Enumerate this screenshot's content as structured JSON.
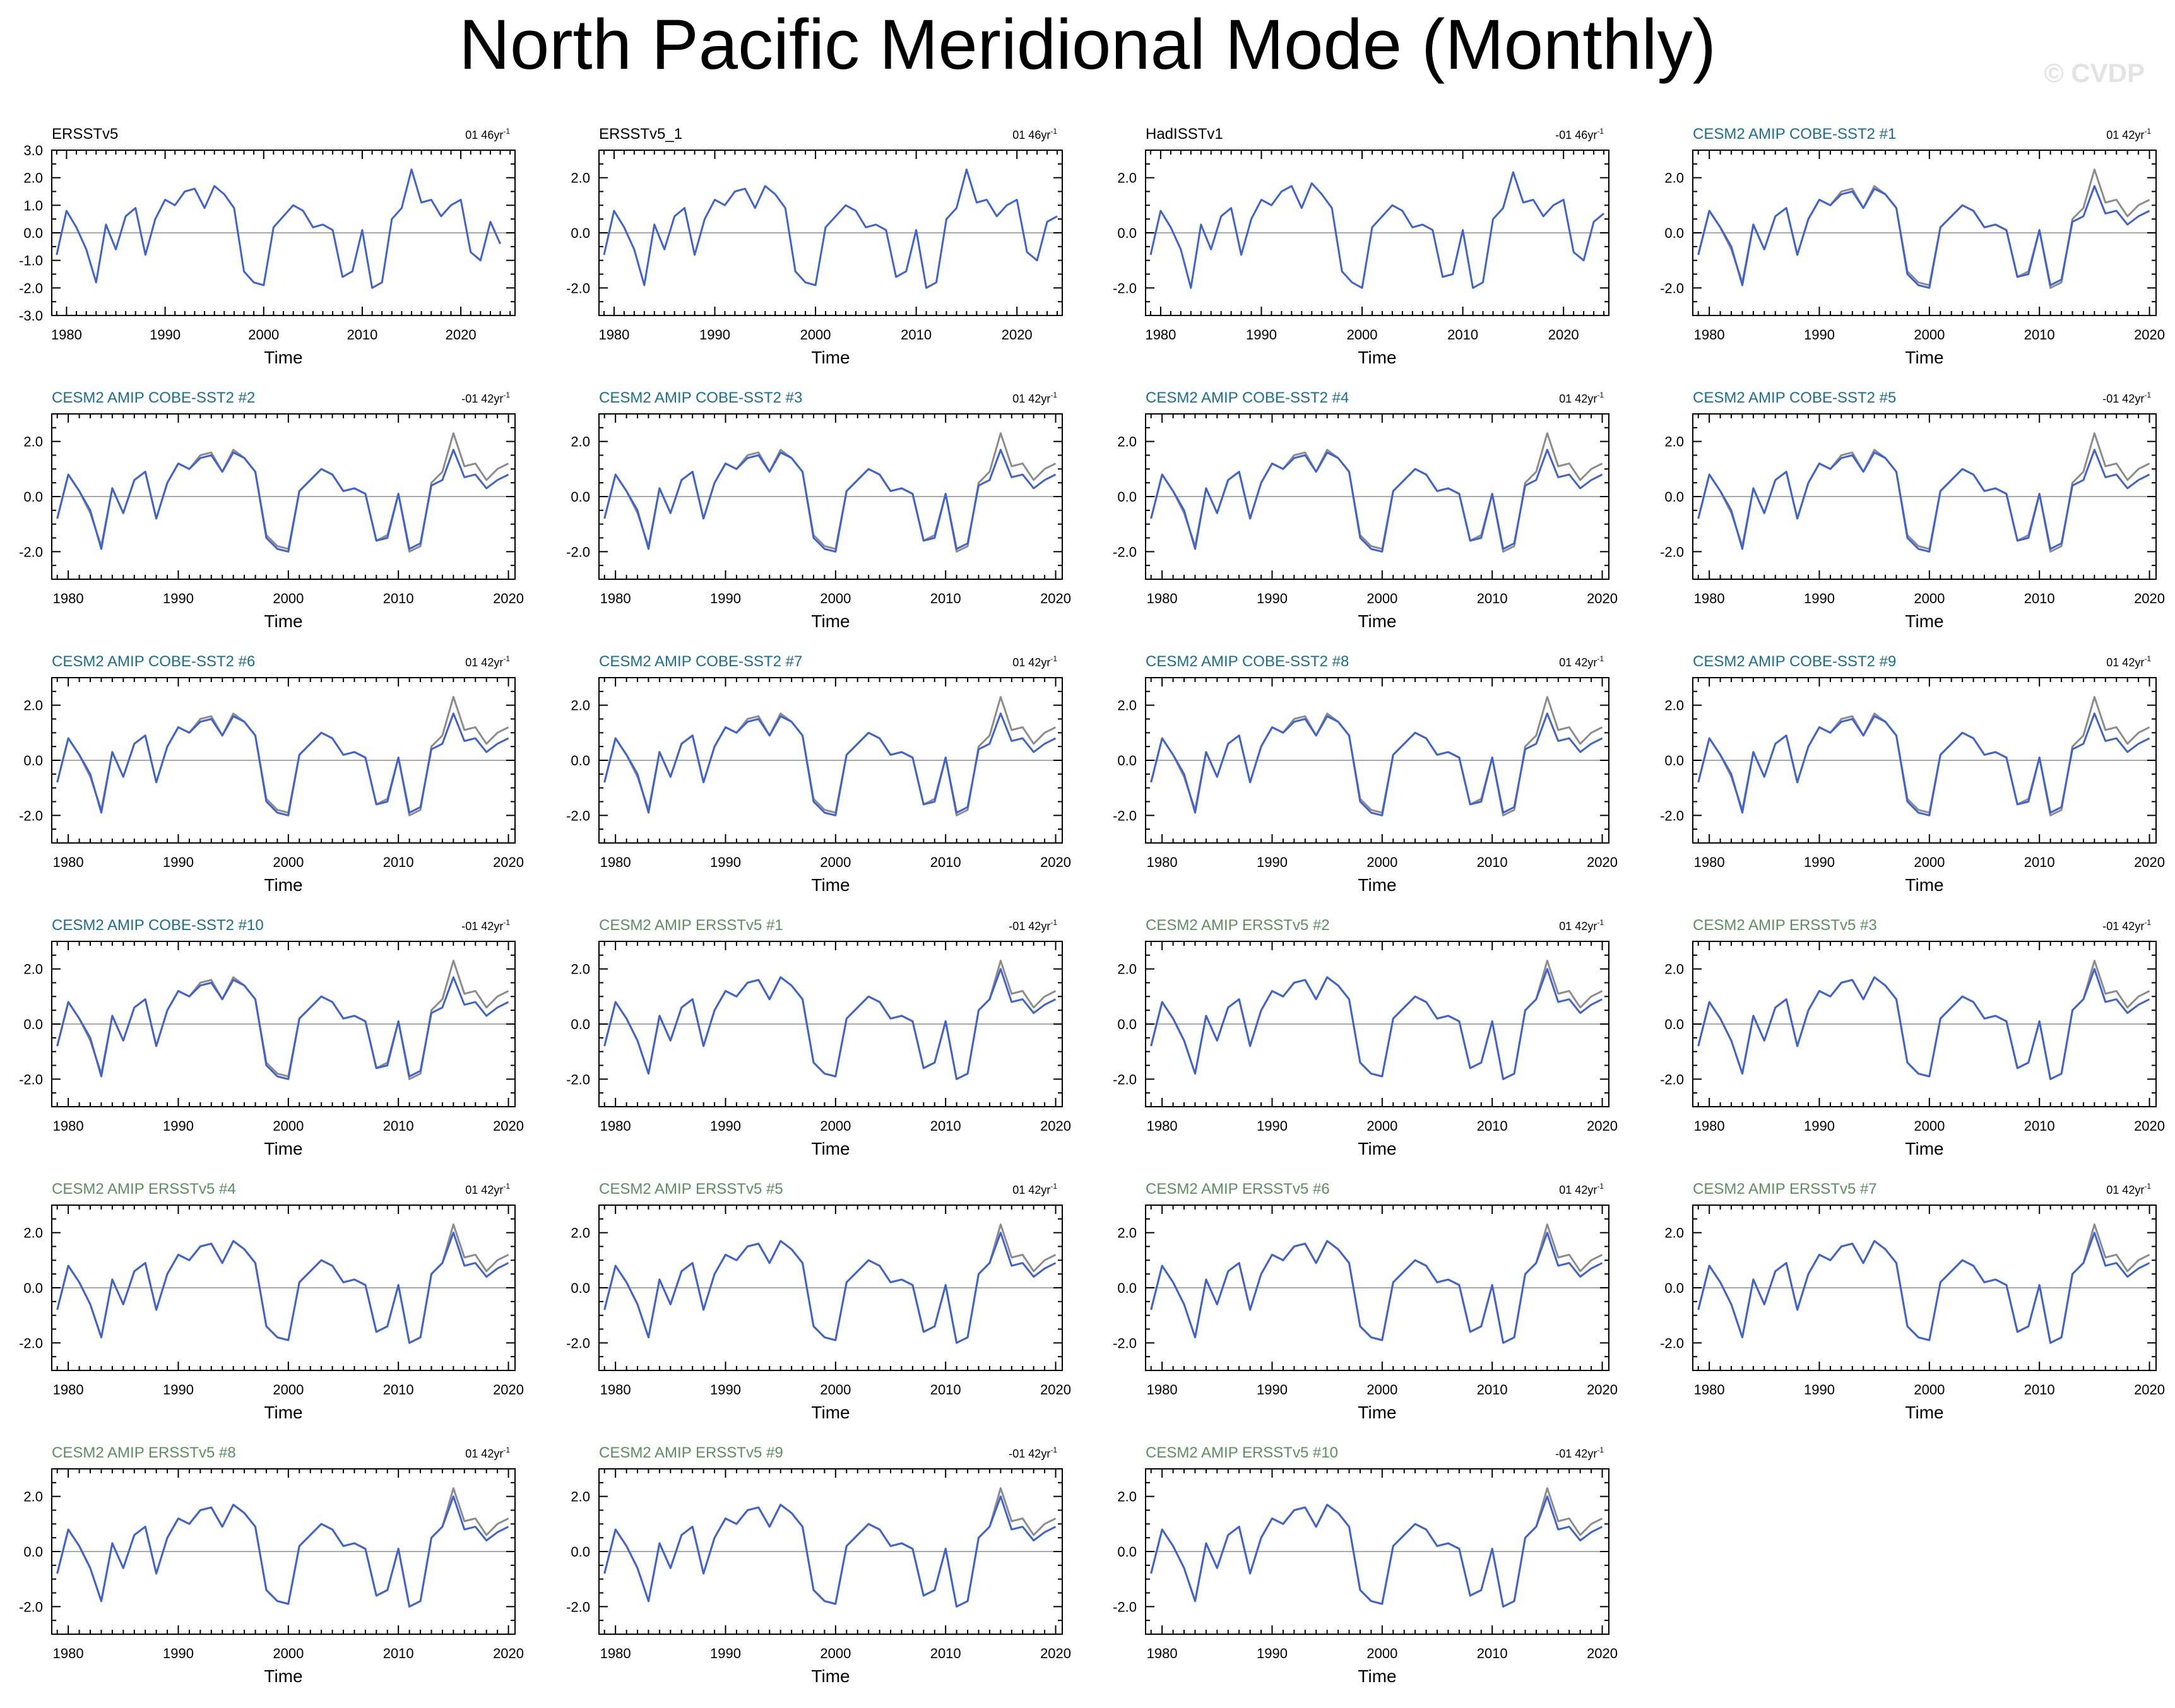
{
  "title": "North Pacific Meridional Mode (Monthly)",
  "watermark": "© CVDP",
  "colors": {
    "model_line": "#3f62d1",
    "obs_line": "#8c8c8c",
    "axis": "#000000",
    "obs_title": "#000000",
    "cobe_title": "#1a6f8c",
    "ersst_title": "#5c8f5e"
  },
  "chart_data": [
    {
      "type": "line",
      "group": "obs",
      "title": "ERSSTv5",
      "trend": "01 46yr",
      "xlabel": "Time",
      "xlim": [
        1978.5,
        2025.5
      ],
      "ylim": [
        -3,
        3
      ],
      "xticks": [
        1980,
        1990,
        2000,
        2010,
        2020
      ],
      "yticks": [
        -3,
        -2,
        -1,
        0,
        1,
        2,
        3
      ],
      "ytick_labels": [
        "-3.0",
        "-2.0",
        "-1.0",
        "0.0",
        "1.0",
        "2.0",
        "3.0"
      ],
      "x": [
        1979,
        1980,
        1981,
        1982,
        1983,
        1984,
        1985,
        1986,
        1987,
        1988,
        1989,
        1990,
        1991,
        1992,
        1993,
        1994,
        1995,
        1996,
        1997,
        1998,
        1999,
        2000,
        2001,
        2002,
        2003,
        2004,
        2005,
        2006,
        2007,
        2008,
        2009,
        2010,
        2011,
        2012,
        2013,
        2014,
        2015,
        2016,
        2017,
        2018,
        2019,
        2020,
        2021,
        2022,
        2023,
        2024
      ],
      "series": [
        {
          "name": "",
          "role": "model",
          "values": [
            -0.8,
            0.8,
            0.2,
            -0.6,
            -1.8,
            0.3,
            -0.6,
            0.6,
            0.9,
            -0.8,
            0.5,
            1.2,
            1.0,
            1.5,
            1.6,
            0.9,
            1.7,
            1.4,
            0.9,
            -1.4,
            -1.8,
            -1.9,
            0.2,
            0.6,
            1.0,
            0.8,
            0.2,
            0.3,
            0.1,
            -1.6,
            -1.4,
            0.1,
            -2.0,
            -1.8,
            0.5,
            0.9,
            2.3,
            1.1,
            1.2,
            0.6,
            1.0,
            1.2,
            -0.7,
            -1.0,
            0.4,
            -0.4
          ]
        }
      ]
    },
    {
      "type": "line",
      "group": "obs",
      "title": "ERSSTv5_1",
      "trend": "01 46yr",
      "xlabel": "Time",
      "xlim": [
        1978.5,
        2024.5
      ],
      "ylim": [
        -3,
        3
      ],
      "xticks": [
        1980,
        1990,
        2000,
        2010,
        2020
      ],
      "yticks": [
        -2,
        0,
        2
      ],
      "ytick_labels": [
        "-2.0",
        "0.0",
        "2.0"
      ],
      "x": [
        1979,
        1980,
        1981,
        1982,
        1983,
        1984,
        1985,
        1986,
        1987,
        1988,
        1989,
        1990,
        1991,
        1992,
        1993,
        1994,
        1995,
        1996,
        1997,
        1998,
        1999,
        2000,
        2001,
        2002,
        2003,
        2004,
        2005,
        2006,
        2007,
        2008,
        2009,
        2010,
        2011,
        2012,
        2013,
        2014,
        2015,
        2016,
        2017,
        2018,
        2019,
        2020,
        2021,
        2022,
        2023,
        2024
      ],
      "series": [
        {
          "name": "",
          "role": "model",
          "values": [
            -0.8,
            0.8,
            0.2,
            -0.6,
            -1.9,
            0.3,
            -0.6,
            0.6,
            0.9,
            -0.8,
            0.5,
            1.2,
            1.0,
            1.5,
            1.6,
            0.9,
            1.7,
            1.4,
            0.9,
            -1.4,
            -1.8,
            -1.9,
            0.2,
            0.6,
            1.0,
            0.8,
            0.2,
            0.3,
            0.1,
            -1.6,
            -1.4,
            0.1,
            -2.0,
            -1.8,
            0.5,
            0.9,
            2.3,
            1.1,
            1.2,
            0.6,
            1.0,
            1.2,
            -0.7,
            -1.0,
            0.4,
            0.6
          ]
        }
      ]
    },
    {
      "type": "line",
      "group": "obs",
      "title": "HadISSTv1",
      "trend": "-01 46yr",
      "xlabel": "Time",
      "xlim": [
        1978.5,
        2024.5
      ],
      "ylim": [
        -3,
        3
      ],
      "xticks": [
        1980,
        1990,
        2000,
        2010,
        2020
      ],
      "yticks": [
        -2,
        0,
        2
      ],
      "ytick_labels": [
        "-2.0",
        "0.0",
        "2.0"
      ],
      "x": [
        1979,
        1980,
        1981,
        1982,
        1983,
        1984,
        1985,
        1986,
        1987,
        1988,
        1989,
        1990,
        1991,
        1992,
        1993,
        1994,
        1995,
        1996,
        1997,
        1998,
        1999,
        2000,
        2001,
        2002,
        2003,
        2004,
        2005,
        2006,
        2007,
        2008,
        2009,
        2010,
        2011,
        2012,
        2013,
        2014,
        2015,
        2016,
        2017,
        2018,
        2019,
        2020,
        2021,
        2022,
        2023,
        2024
      ],
      "series": [
        {
          "name": "",
          "role": "model",
          "values": [
            -0.8,
            0.8,
            0.2,
            -0.6,
            -2.0,
            0.3,
            -0.6,
            0.6,
            0.9,
            -0.8,
            0.5,
            1.2,
            1.0,
            1.5,
            1.7,
            0.9,
            1.8,
            1.4,
            0.9,
            -1.4,
            -1.8,
            -2.0,
            0.2,
            0.6,
            1.0,
            0.8,
            0.2,
            0.3,
            0.1,
            -1.6,
            -1.5,
            0.1,
            -2.0,
            -1.8,
            0.5,
            0.9,
            2.2,
            1.1,
            1.2,
            0.6,
            1.0,
            1.2,
            -0.7,
            -1.0,
            0.4,
            0.7
          ]
        }
      ]
    }
  ],
  "ensemble": {
    "xlabel": "Time",
    "xlim": [
      1978.5,
      2020.6
    ],
    "ylim": [
      -3,
      3
    ],
    "xticks": [
      1980,
      1990,
      2000,
      2010,
      2020
    ],
    "yticks": [
      -2,
      0,
      2
    ],
    "ytick_labels": [
      "-2.0",
      "0.0",
      "2.0"
    ],
    "x": [
      1979,
      1980,
      1981,
      1982,
      1983,
      1984,
      1985,
      1986,
      1987,
      1988,
      1989,
      1990,
      1991,
      1992,
      1993,
      1994,
      1995,
      1996,
      1997,
      1998,
      1999,
      2000,
      2001,
      2002,
      2003,
      2004,
      2005,
      2006,
      2007,
      2008,
      2009,
      2010,
      2011,
      2012,
      2013,
      2014,
      2015,
      2016,
      2017,
      2018,
      2019,
      2020
    ],
    "reference_series": [
      -0.8,
      0.8,
      0.2,
      -0.6,
      -1.8,
      0.3,
      -0.6,
      0.6,
      0.9,
      -0.8,
      0.5,
      1.2,
      1.0,
      1.5,
      1.6,
      0.9,
      1.7,
      1.4,
      0.9,
      -1.4,
      -1.8,
      -1.9,
      0.2,
      0.6,
      1.0,
      0.8,
      0.2,
      0.3,
      0.1,
      -1.6,
      -1.4,
      0.1,
      -2.0,
      -1.8,
      0.5,
      0.9,
      2.3,
      1.1,
      1.2,
      0.6,
      1.0,
      1.2
    ],
    "cobe_series": [
      -0.8,
      0.8,
      0.2,
      -0.5,
      -1.9,
      0.3,
      -0.6,
      0.6,
      0.9,
      -0.8,
      0.5,
      1.2,
      1.0,
      1.4,
      1.5,
      0.9,
      1.6,
      1.4,
      0.9,
      -1.5,
      -1.9,
      -2.0,
      0.2,
      0.6,
      1.0,
      0.8,
      0.2,
      0.3,
      0.1,
      -1.6,
      -1.5,
      0.1,
      -1.9,
      -1.7,
      0.4,
      0.6,
      1.7,
      0.7,
      0.8,
      0.3,
      0.6,
      0.8
    ],
    "ersst_series": [
      -0.8,
      0.8,
      0.2,
      -0.6,
      -1.8,
      0.3,
      -0.6,
      0.6,
      0.9,
      -0.8,
      0.5,
      1.2,
      1.0,
      1.5,
      1.6,
      0.9,
      1.7,
      1.4,
      0.9,
      -1.4,
      -1.8,
      -1.9,
      0.2,
      0.6,
      1.0,
      0.8,
      0.2,
      0.3,
      0.1,
      -1.6,
      -1.4,
      0.1,
      -2.0,
      -1.8,
      0.5,
      0.9,
      2.0,
      0.8,
      0.9,
      0.4,
      0.7,
      0.9
    ],
    "members": [
      {
        "title": "CESM2 AMIP COBE-SST2 #1",
        "trend": "01 42yr",
        "group": "cobe"
      },
      {
        "title": "CESM2 AMIP COBE-SST2 #2",
        "trend": "-01 42yr",
        "group": "cobe"
      },
      {
        "title": "CESM2 AMIP COBE-SST2 #3",
        "trend": "01 42yr",
        "group": "cobe"
      },
      {
        "title": "CESM2 AMIP COBE-SST2 #4",
        "trend": "01 42yr",
        "group": "cobe"
      },
      {
        "title": "CESM2 AMIP COBE-SST2 #5",
        "trend": "-01 42yr",
        "group": "cobe"
      },
      {
        "title": "CESM2 AMIP COBE-SST2 #6",
        "trend": "01 42yr",
        "group": "cobe"
      },
      {
        "title": "CESM2 AMIP COBE-SST2 #7",
        "trend": "01 42yr",
        "group": "cobe"
      },
      {
        "title": "CESM2 AMIP COBE-SST2 #8",
        "trend": "01 42yr",
        "group": "cobe"
      },
      {
        "title": "CESM2 AMIP COBE-SST2 #9",
        "trend": "01 42yr",
        "group": "cobe"
      },
      {
        "title": "CESM2 AMIP COBE-SST2 #10",
        "trend": "-01 42yr",
        "group": "cobe"
      },
      {
        "title": "CESM2 AMIP ERSSTv5 #1",
        "trend": "-01 42yr",
        "group": "ersst"
      },
      {
        "title": "CESM2 AMIP ERSSTv5 #2",
        "trend": "01 42yr",
        "group": "ersst"
      },
      {
        "title": "CESM2 AMIP ERSSTv5 #3",
        "trend": "-01 42yr",
        "group": "ersst"
      },
      {
        "title": "CESM2 AMIP ERSSTv5 #4",
        "trend": "01 42yr",
        "group": "ersst"
      },
      {
        "title": "CESM2 AMIP ERSSTv5 #5",
        "trend": "01 42yr",
        "group": "ersst"
      },
      {
        "title": "CESM2 AMIP ERSSTv5 #6",
        "trend": "01 42yr",
        "group": "ersst"
      },
      {
        "title": "CESM2 AMIP ERSSTv5 #7",
        "trend": "01 42yr",
        "group": "ersst"
      },
      {
        "title": "CESM2 AMIP ERSSTv5 #8",
        "trend": "01 42yr",
        "group": "ersst"
      },
      {
        "title": "CESM2 AMIP ERSSTv5 #9",
        "trend": "-01 42yr",
        "group": "ersst"
      },
      {
        "title": "CESM2 AMIP ERSSTv5 #10",
        "trend": "-01 42yr",
        "group": "ersst"
      }
    ]
  }
}
